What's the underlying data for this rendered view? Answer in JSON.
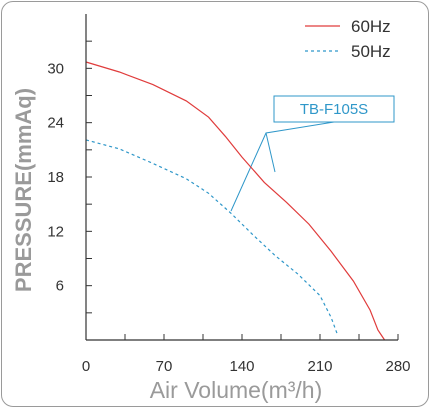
{
  "chart_data": {
    "type": "line",
    "xlabel": "Air Volume(m³/h)",
    "ylabel": "PRESSURE(mmAq)",
    "xlim": [
      0,
      280
    ],
    "ylim": [
      0,
      36
    ],
    "x_ticks": [
      "0",
      "70",
      "140",
      "210",
      "280"
    ],
    "y_ticks": [
      "6",
      "12",
      "18",
      "24",
      "30"
    ],
    "grid": false,
    "legend_position": "top-right",
    "annotation": "TB-F105S",
    "series": [
      {
        "name": "60Hz",
        "color": "#e03c3c",
        "style": "solid",
        "x": [
          0,
          30,
          60,
          90,
          110,
          125,
          140,
          160,
          180,
          200,
          220,
          240,
          255,
          262,
          268
        ],
        "y": [
          30.7,
          29.6,
          28.2,
          26.4,
          24.6,
          22.5,
          20.2,
          17.4,
          15.2,
          12.8,
          9.8,
          6.5,
          3.3,
          1.1,
          0
        ]
      },
      {
        "name": "50Hz",
        "color": "#2f97c9",
        "style": "dashed",
        "x": [
          0,
          30,
          60,
          90,
          110,
          130,
          150,
          170,
          190,
          210,
          220,
          226
        ],
        "y": [
          22.1,
          21.1,
          19.5,
          17.8,
          16.2,
          14.0,
          11.6,
          9.3,
          7.3,
          4.9,
          2.5,
          0.5
        ]
      }
    ]
  }
}
